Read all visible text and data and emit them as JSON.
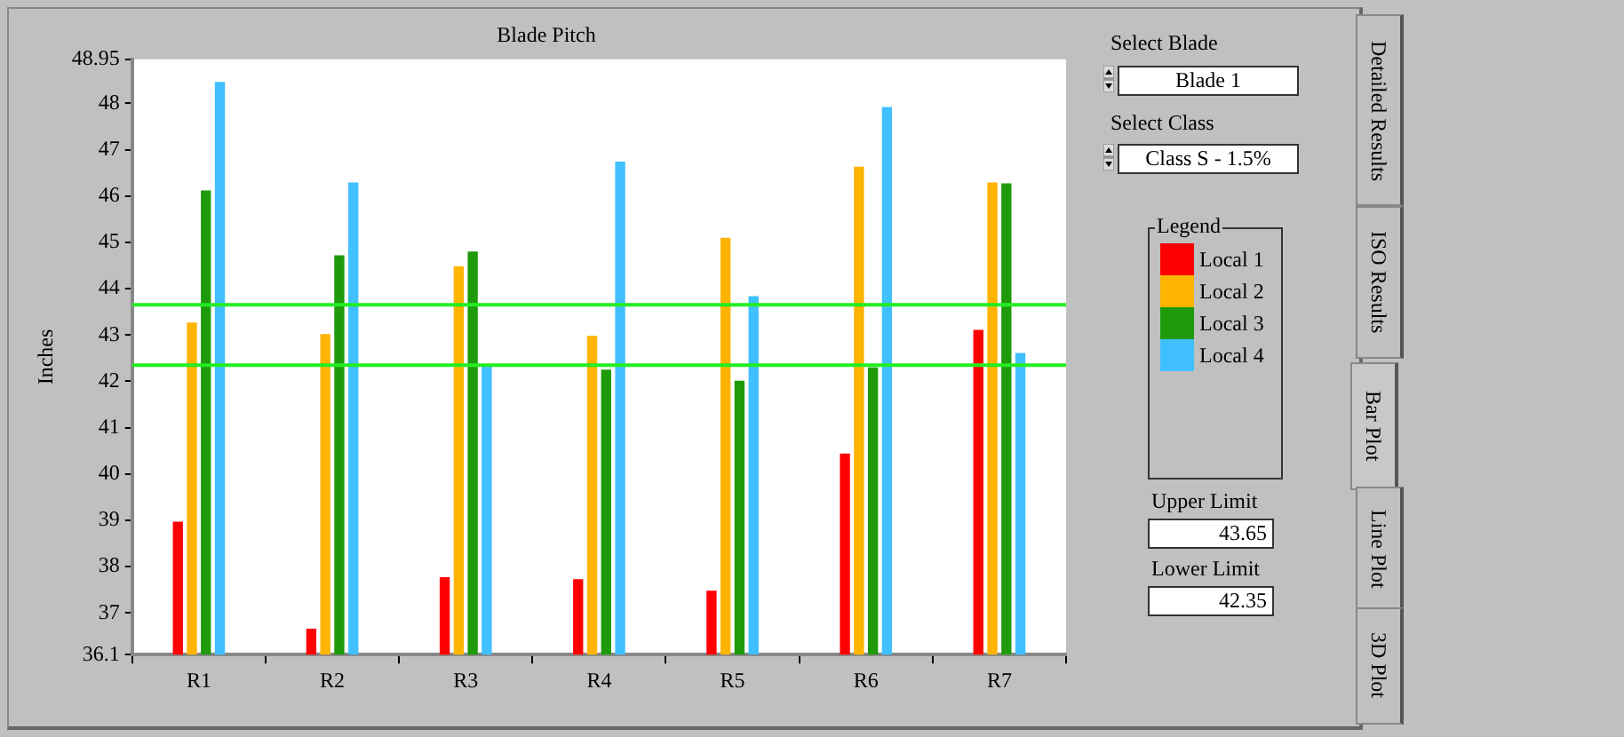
{
  "chart_data": {
    "type": "bar",
    "title": "Blade Pitch",
    "ylabel": "Inches",
    "categories": [
      "R1",
      "R2",
      "R3",
      "R4",
      "R5",
      "R6",
      "R7"
    ],
    "series": [
      {
        "name": "Local 1",
        "color": "#ff0000",
        "values": [
          38.97,
          36.66,
          37.77,
          37.73,
          37.48,
          40.44,
          43.11
        ]
      },
      {
        "name": "Local 2",
        "color": "#ffb400",
        "values": [
          43.27,
          43.02,
          44.48,
          42.98,
          45.1,
          46.63,
          46.29
        ]
      },
      {
        "name": "Local 3",
        "color": "#1e9a0a",
        "values": [
          46.12,
          44.72,
          44.8,
          42.25,
          42.01,
          42.3,
          46.27
        ]
      },
      {
        "name": "Local 4",
        "color": "#40c0ff",
        "values": [
          48.46,
          46.29,
          42.32,
          46.74,
          43.84,
          47.92,
          42.61
        ]
      }
    ],
    "ylim": [
      36.1,
      48.95
    ],
    "yticks": [
      36.1,
      37,
      38,
      39,
      40,
      41,
      42,
      43,
      44,
      45,
      46,
      47,
      48,
      48.95
    ],
    "grid": false,
    "legend": "right",
    "legend_title": "Legend",
    "ref_lines": [
      {
        "axis": "y",
        "value": 43.65,
        "color": "#22ee22"
      },
      {
        "axis": "y",
        "value": 42.35,
        "color": "#22ee22"
      }
    ],
    "annotations": [
      "Select Blade",
      "Blade 1",
      "Select Class",
      "Class S - 1.5%",
      "Detailed Results",
      "ISO Results",
      "Bar Plot",
      "Line Plot",
      "3D Plot",
      "Upper Limit",
      "43.65",
      "Lower Limit",
      "42.35"
    ]
  }
}
